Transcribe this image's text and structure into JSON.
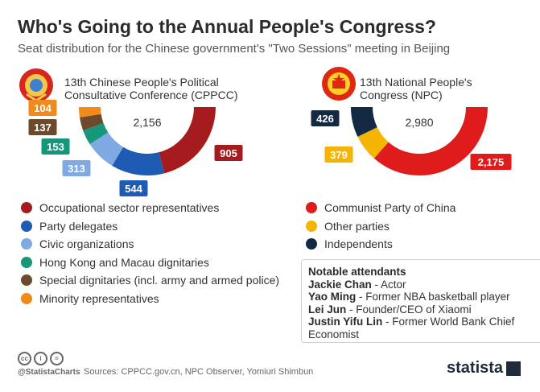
{
  "title": "Who's Going to the Annual People's Congress?",
  "subtitle": "Seat distribution for the Chinese government's \"Two Sessions\" meeting in Beijing",
  "chart_data": [
    {
      "type": "pie",
      "title_lines": [
        "13th Chinese People's Political",
        "Consultative Conference (CPPCC)"
      ],
      "total": "2,156",
      "series": [
        {
          "name": "Occupational sector representatives",
          "value": 905,
          "label": "905",
          "color": "#a51b1e"
        },
        {
          "name": "Party delegates",
          "value": 544,
          "label": "544",
          "color": "#1e5bb5"
        },
        {
          "name": "Civic organizations",
          "value": 313,
          "label": "313",
          "color": "#7ea9e3"
        },
        {
          "name": "Hong Kong and Macau dignitaries",
          "value": 153,
          "label": "153",
          "color": "#17977a"
        },
        {
          "name": "Special dignitaries (incl. army and armed police)",
          "value": 137,
          "label": "137",
          "color": "#6e4a2c"
        },
        {
          "name": "Minority representatives",
          "value": 104,
          "label": "104",
          "color": "#f18a1b"
        }
      ]
    },
    {
      "type": "pie",
      "title_lines": [
        "13th National People's",
        "Congress (NPC)"
      ],
      "total": "2,980",
      "series": [
        {
          "name": "Communist Party of China",
          "value": 2175,
          "label": "2,175",
          "color": "#df1b1b"
        },
        {
          "name": "Other parties",
          "value": 379,
          "label": "379",
          "color": "#f5b400"
        },
        {
          "name": "Independents",
          "value": 426,
          "label": "426",
          "color": "#132a42"
        }
      ]
    }
  ],
  "notable": {
    "title": "Notable attendants",
    "people": [
      {
        "name": "Jackie Chan",
        "desc": " - Actor"
      },
      {
        "name": "Yao Ming",
        "desc": " - Former NBA basketball player"
      },
      {
        "name": "Lei Jun",
        "desc": " - Founder/CEO of Xiaomi"
      },
      {
        "name": "Justin Yifu Lin",
        "desc": " - Former World Bank Chief Economist"
      }
    ]
  },
  "footer": {
    "handle": "@StatistaCharts",
    "source": "Sources: CPPCC.gov.cn, NPC Observer, Yomiuri Shimbun",
    "brand": "statista",
    "icons": [
      "cc",
      "by",
      "nd"
    ]
  }
}
